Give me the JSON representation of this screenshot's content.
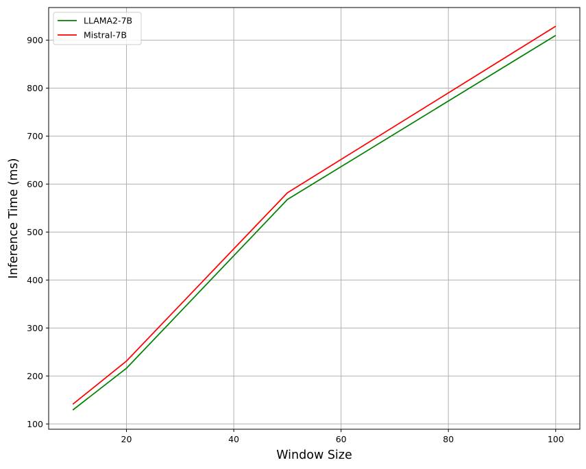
{
  "chart_data": {
    "type": "line",
    "title": "",
    "xlabel": "Window Size",
    "ylabel": "Inference Time (ms)",
    "x": [
      10,
      20,
      50,
      100
    ],
    "xlim": [
      5.5,
      104.5
    ],
    "ylim": [
      89,
      968
    ],
    "xticks": [
      20,
      40,
      60,
      80,
      100
    ],
    "yticks": [
      100,
      200,
      300,
      400,
      500,
      600,
      700,
      800,
      900
    ],
    "grid": true,
    "legend_position": "upper-left",
    "series": [
      {
        "name": "LLAMA2-7B",
        "color": "#008000",
        "values": [
          129,
          216,
          568,
          910
        ]
      },
      {
        "name": "Mistral-7B",
        "color": "#ff0000",
        "values": [
          141,
          231,
          582,
          929
        ]
      }
    ]
  }
}
